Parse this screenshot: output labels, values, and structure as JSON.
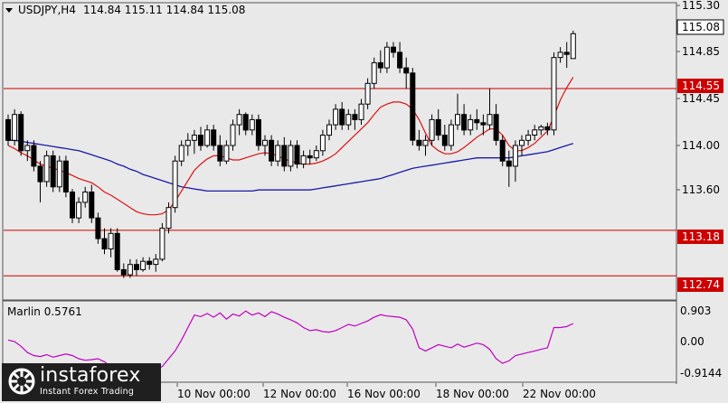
{
  "header": {
    "symbol": "USDJPY,H4",
    "ohlc": "114.84 115.11 114.84 115.08"
  },
  "price_axis": {
    "ticks": [
      "115.30",
      "114.85",
      "114.45",
      "114.00",
      "113.60"
    ]
  },
  "price_badges": {
    "current": "115.08",
    "levels": [
      "114.55",
      "113.18",
      "112.74"
    ]
  },
  "indicator": {
    "label": "Marlin 0.5761",
    "ticks": [
      "0.903",
      "0.00",
      "-0.9144"
    ]
  },
  "time_axis": {
    "labels": [
      "10 Nov 00:00",
      "12 Nov 00:00",
      "16 Nov 00:00",
      "18 Nov 00:00",
      "22 Nov 00:00"
    ]
  },
  "watermark": {
    "brand": "instaforex",
    "tagline": "Instant Forex Trading"
  },
  "colors": {
    "background": "#e9e9e9",
    "bull_body": "#ffffff",
    "bear_body": "#000000",
    "level_line": "#cc0000",
    "ma_fast": "#dd1111",
    "ma_slow": "#1a1aa8",
    "oscillator": "#c000c0"
  },
  "chart_data": {
    "type": "candlestick",
    "price_range": [
      112.65,
      115.35
    ],
    "levels": [
      114.55,
      113.18,
      112.74
    ],
    "candles": [
      [
        114.25,
        114.3,
        114.0,
        114.05
      ],
      [
        114.05,
        114.35,
        114.0,
        114.3
      ],
      [
        114.3,
        114.33,
        113.9,
        113.95
      ],
      [
        113.95,
        114.05,
        113.85,
        114.0
      ],
      [
        114.0,
        114.05,
        113.75,
        113.8
      ],
      [
        113.8,
        113.85,
        113.45,
        113.65
      ],
      [
        113.65,
        113.95,
        113.6,
        113.9
      ],
      [
        113.9,
        113.95,
        113.55,
        113.6
      ],
      [
        113.6,
        113.9,
        113.55,
        113.85
      ],
      [
        113.85,
        113.9,
        113.5,
        113.55
      ],
      [
        113.55,
        113.58,
        113.25,
        113.3
      ],
      [
        113.3,
        113.5,
        113.25,
        113.45
      ],
      [
        113.45,
        113.6,
        113.4,
        113.55
      ],
      [
        113.55,
        113.62,
        113.25,
        113.3
      ],
      [
        113.3,
        113.35,
        113.05,
        113.1
      ],
      [
        113.1,
        113.2,
        112.95,
        113.0
      ],
      [
        113.0,
        113.2,
        112.92,
        113.15
      ],
      [
        113.15,
        113.2,
        112.78,
        112.8
      ],
      [
        112.8,
        112.86,
        112.72,
        112.75
      ],
      [
        112.75,
        112.9,
        112.72,
        112.85
      ],
      [
        112.85,
        112.9,
        112.74,
        112.8
      ],
      [
        112.8,
        112.92,
        112.78,
        112.88
      ],
      [
        112.88,
        112.92,
        112.8,
        112.85
      ],
      [
        112.85,
        112.95,
        112.78,
        112.9
      ],
      [
        112.9,
        113.25,
        112.88,
        113.2
      ],
      [
        113.2,
        113.45,
        113.15,
        113.4
      ],
      [
        113.4,
        113.9,
        113.35,
        113.85
      ],
      [
        113.85,
        114.05,
        113.8,
        114.0
      ],
      [
        114.0,
        114.12,
        113.9,
        114.05
      ],
      [
        114.05,
        114.15,
        113.92,
        114.1
      ],
      [
        114.1,
        114.18,
        113.95,
        114.0
      ],
      [
        114.0,
        114.2,
        113.98,
        114.15
      ],
      [
        114.15,
        114.2,
        113.95,
        114.0
      ],
      [
        114.0,
        114.1,
        113.8,
        113.85
      ],
      [
        113.85,
        114.05,
        113.82,
        114.0
      ],
      [
        114.0,
        114.25,
        113.95,
        114.2
      ],
      [
        114.2,
        114.35,
        114.1,
        114.3
      ],
      [
        114.3,
        114.32,
        114.1,
        114.15
      ],
      [
        114.15,
        114.3,
        114.1,
        114.25
      ],
      [
        114.25,
        114.3,
        113.95,
        114.0
      ],
      [
        114.0,
        114.1,
        113.9,
        114.05
      ],
      [
        114.05,
        114.1,
        113.8,
        113.85
      ],
      [
        113.85,
        114.05,
        113.8,
        114.0
      ],
      [
        114.0,
        114.08,
        113.75,
        113.8
      ],
      [
        113.8,
        114.05,
        113.75,
        114.0
      ],
      [
        114.0,
        114.05,
        113.78,
        113.82
      ],
      [
        113.82,
        113.95,
        113.78,
        113.9
      ],
      [
        113.9,
        113.96,
        113.82,
        113.88
      ],
      [
        113.88,
        114.0,
        113.85,
        113.95
      ],
      [
        113.95,
        114.15,
        113.9,
        114.1
      ],
      [
        114.1,
        114.25,
        114.05,
        114.2
      ],
      [
        114.2,
        114.4,
        114.15,
        114.35
      ],
      [
        114.35,
        114.42,
        114.15,
        114.2
      ],
      [
        114.2,
        114.35,
        114.15,
        114.3
      ],
      [
        114.3,
        114.35,
        114.15,
        114.25
      ],
      [
        114.25,
        114.45,
        114.2,
        114.4
      ],
      [
        114.4,
        114.65,
        114.35,
        114.6
      ],
      [
        114.6,
        114.85,
        114.55,
        114.8
      ],
      [
        114.8,
        114.92,
        114.7,
        114.75
      ],
      [
        114.75,
        115.0,
        114.7,
        114.95
      ],
      [
        114.95,
        115.0,
        114.85,
        114.9
      ],
      [
        114.9,
        115.0,
        114.7,
        114.75
      ],
      [
        114.75,
        114.85,
        114.55,
        114.7
      ],
      [
        114.7,
        114.75,
        114.0,
        114.05
      ],
      [
        114.05,
        114.15,
        113.95,
        114.0
      ],
      [
        114.0,
        114.1,
        113.9,
        114.05
      ],
      [
        114.05,
        114.3,
        114.0,
        114.25
      ],
      [
        114.25,
        114.35,
        114.05,
        114.1
      ],
      [
        114.1,
        114.2,
        113.95,
        114.0
      ],
      [
        114.0,
        114.25,
        113.95,
        114.2
      ],
      [
        114.2,
        114.5,
        114.15,
        114.3
      ],
      [
        114.3,
        114.4,
        114.1,
        114.15
      ],
      [
        114.15,
        114.3,
        114.1,
        114.25
      ],
      [
        114.25,
        114.35,
        114.15,
        114.22
      ],
      [
        114.22,
        114.3,
        114.1,
        114.2
      ],
      [
        114.2,
        114.55,
        114.15,
        114.3
      ],
      [
        114.3,
        114.4,
        114.0,
        114.05
      ],
      [
        114.05,
        114.1,
        113.8,
        113.85
      ],
      [
        113.85,
        113.95,
        113.6,
        113.8
      ],
      [
        113.8,
        114.05,
        113.65,
        114.0
      ],
      [
        114.0,
        114.1,
        113.9,
        114.05
      ],
      [
        114.05,
        114.15,
        114.0,
        114.1
      ],
      [
        114.1,
        114.2,
        114.05,
        114.15
      ],
      [
        114.15,
        114.2,
        114.1,
        114.18
      ],
      [
        114.18,
        114.22,
        114.1,
        114.15
      ],
      [
        114.15,
        114.9,
        114.1,
        114.85
      ],
      [
        114.85,
        114.95,
        114.8,
        114.9
      ],
      [
        114.9,
        115.0,
        114.75,
        114.88
      ],
      [
        114.84,
        115.11,
        114.84,
        115.08
      ]
    ],
    "ma_fast": [
      114.0,
      113.97,
      113.93,
      113.9,
      113.86,
      113.82,
      113.8,
      113.78,
      113.76,
      113.74,
      113.71,
      113.68,
      113.66,
      113.64,
      113.6,
      113.55,
      113.52,
      113.48,
      113.44,
      113.4,
      113.36,
      113.34,
      113.33,
      113.33,
      113.34,
      113.38,
      113.46,
      113.56,
      113.66,
      113.76,
      113.82,
      113.87,
      113.9,
      113.9,
      113.88,
      113.86,
      113.86,
      113.88,
      113.9,
      113.92,
      113.93,
      113.92,
      113.9,
      113.87,
      113.85,
      113.83,
      113.82,
      113.82,
      113.83,
      113.85,
      113.88,
      113.92,
      113.98,
      114.04,
      114.1,
      114.16,
      114.22,
      114.3,
      114.37,
      114.4,
      114.42,
      114.42,
      114.4,
      114.35,
      114.25,
      114.12,
      114.0,
      113.95,
      113.92,
      113.92,
      113.94,
      113.98,
      114.03,
      114.08,
      114.12,
      114.16,
      114.16,
      114.1,
      114.0,
      113.95,
      113.95,
      113.98,
      114.02,
      114.08,
      114.14,
      114.28,
      114.44,
      114.56,
      114.66
    ],
    "ma_slow": [
      114.05,
      114.05,
      114.04,
      114.03,
      114.02,
      114.01,
      114.0,
      113.99,
      113.98,
      113.97,
      113.96,
      113.95,
      113.93,
      113.91,
      113.89,
      113.87,
      113.85,
      113.82,
      113.8,
      113.77,
      113.75,
      113.72,
      113.7,
      113.68,
      113.66,
      113.64,
      113.62,
      113.6,
      113.59,
      113.58,
      113.57,
      113.56,
      113.56,
      113.56,
      113.56,
      113.56,
      113.56,
      113.56,
      113.56,
      113.57,
      113.57,
      113.57,
      113.57,
      113.57,
      113.57,
      113.57,
      113.57,
      113.57,
      113.58,
      113.59,
      113.6,
      113.61,
      113.62,
      113.63,
      113.64,
      113.65,
      113.66,
      113.67,
      113.68,
      113.7,
      113.72,
      113.74,
      113.76,
      113.78,
      113.79,
      113.8,
      113.81,
      113.82,
      113.83,
      113.84,
      113.85,
      113.86,
      113.87,
      113.88,
      113.88,
      113.88,
      113.88,
      113.88,
      113.88,
      113.89,
      113.9,
      113.91,
      113.92,
      113.93,
      113.94,
      113.96,
      113.98,
      114.0,
      114.02
    ],
    "marlin": [
      0.05,
      0.0,
      -0.15,
      -0.35,
      -0.45,
      -0.48,
      -0.42,
      -0.5,
      -0.45,
      -0.4,
      -0.45,
      -0.55,
      -0.6,
      -0.58,
      -0.55,
      -0.65,
      -0.8,
      -0.95,
      -0.9,
      -0.82,
      -0.88,
      -0.85,
      -0.9,
      -0.88,
      -0.8,
      -0.55,
      -0.3,
      0.05,
      0.45,
      0.85,
      0.8,
      0.9,
      0.78,
      0.92,
      0.72,
      0.88,
      0.82,
      0.98,
      0.85,
      0.92,
      0.8,
      0.96,
      0.88,
      0.78,
      0.7,
      0.6,
      0.45,
      0.35,
      0.38,
      0.32,
      0.3,
      0.35,
      0.45,
      0.55,
      0.5,
      0.58,
      0.66,
      0.78,
      0.86,
      0.82,
      0.8,
      0.78,
      0.7,
      0.4,
      -0.2,
      -0.3,
      -0.2,
      -0.1,
      -0.15,
      -0.2,
      -0.08,
      -0.18,
      -0.12,
      -0.05,
      -0.1,
      -0.25,
      -0.55,
      -0.7,
      -0.62,
      -0.45,
      -0.4,
      -0.35,
      -0.3,
      -0.25,
      -0.2,
      0.45,
      0.45,
      0.48,
      0.58
    ]
  }
}
